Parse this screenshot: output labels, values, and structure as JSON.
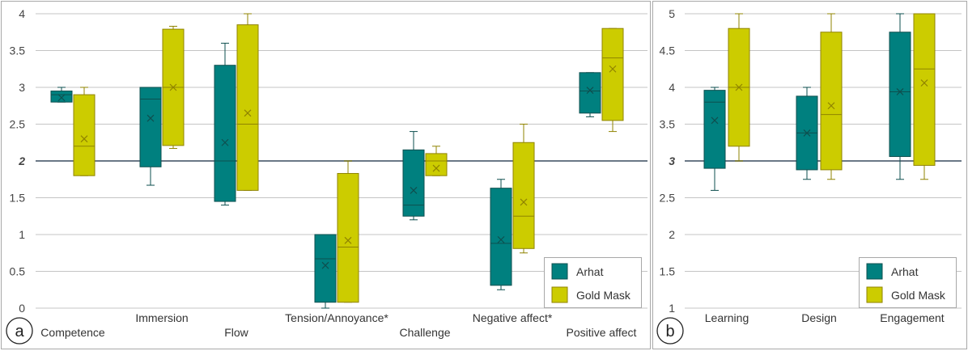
{
  "chart_data": [
    {
      "type": "boxplot",
      "panel_label": "a",
      "ylim": [
        0,
        4
      ],
      "yticks": [
        "0",
        "0.5",
        "1",
        "1.5",
        "2",
        "2.5",
        "3",
        "3.5",
        "4"
      ],
      "reference_line": 2,
      "categories": [
        "Competence",
        "Immersion",
        "Flow",
        "Tension/Annoyance*",
        "Challenge",
        "Negative affect*",
        "Positive affect"
      ],
      "series": [
        {
          "name": "Arhat",
          "color": "#00807f",
          "boxes": [
            {
              "min": 2.8,
              "q1": 2.8,
              "median": 2.9,
              "q3": 2.95,
              "max": 3.0,
              "mean": 2.86
            },
            {
              "min": 1.67,
              "q1": 1.92,
              "median": 2.84,
              "q3": 3.0,
              "max": 3.0,
              "mean": 2.58
            },
            {
              "min": 1.4,
              "q1": 1.45,
              "median": 2.0,
              "q3": 3.3,
              "max": 3.6,
              "mean": 2.25
            },
            {
              "min": 0.0,
              "q1": 0.08,
              "median": 0.67,
              "q3": 1.0,
              "max": 1.0,
              "mean": 0.58
            },
            {
              "min": 1.2,
              "q1": 1.25,
              "median": 1.4,
              "q3": 2.15,
              "max": 2.4,
              "mean": 1.6
            },
            {
              "min": 0.25,
              "q1": 0.31,
              "median": 0.88,
              "q3": 1.63,
              "max": 1.75,
              "mean": 0.93
            },
            {
              "min": 2.6,
              "q1": 2.65,
              "median": 2.95,
              "q3": 3.2,
              "max": 3.2,
              "mean": 2.96
            }
          ]
        },
        {
          "name": "Gold Mask",
          "color": "#cccc00",
          "boxes": [
            {
              "min": 1.8,
              "q1": 1.8,
              "median": 2.2,
              "q3": 2.9,
              "max": 3.0,
              "mean": 2.3
            },
            {
              "min": 2.17,
              "q1": 2.21,
              "median": 3.0,
              "q3": 3.79,
              "max": 3.83,
              "mean": 3.0
            },
            {
              "min": 1.6,
              "q1": 1.6,
              "median": 2.5,
              "q3": 3.85,
              "max": 4.0,
              "mean": 2.65
            },
            {
              "min": 0.08,
              "q1": 0.08,
              "median": 0.83,
              "q3": 1.83,
              "max": 2.0,
              "mean": 0.92
            },
            {
              "min": 1.8,
              "q1": 1.8,
              "median": 2.0,
              "q3": 2.1,
              "max": 2.2,
              "mean": 1.9
            },
            {
              "min": 0.75,
              "q1": 0.81,
              "median": 1.25,
              "q3": 2.25,
              "max": 2.5,
              "mean": 1.44
            },
            {
              "min": 2.4,
              "q1": 2.55,
              "median": 3.4,
              "q3": 3.8,
              "max": 3.8,
              "mean": 3.25
            }
          ]
        }
      ],
      "legend": {
        "position": "bottom-right",
        "entries": [
          "Arhat",
          "Gold Mask"
        ]
      }
    },
    {
      "type": "boxplot",
      "panel_label": "b",
      "ylim": [
        1,
        5
      ],
      "yticks": [
        "1",
        "1.5",
        "2",
        "2.5",
        "3",
        "3.5",
        "4",
        "4.5",
        "5"
      ],
      "reference_line": 3,
      "categories": [
        "Learning",
        "Design",
        "Engagement"
      ],
      "series": [
        {
          "name": "Arhat",
          "color": "#00807f",
          "boxes": [
            {
              "min": 2.6,
              "q1": 2.9,
              "median": 3.8,
              "q3": 3.96,
              "max": 4.0,
              "mean": 3.55
            },
            {
              "min": 2.75,
              "q1": 2.88,
              "median": 3.38,
              "q3": 3.88,
              "max": 4.0,
              "mean": 3.38
            },
            {
              "min": 2.75,
              "q1": 3.06,
              "median": 3.94,
              "q3": 4.75,
              "max": 5.0,
              "mean": 3.94
            }
          ]
        },
        {
          "name": "Gold Mask",
          "color": "#cccc00",
          "boxes": [
            {
              "min": 3.0,
              "q1": 3.2,
              "median": 4.0,
              "q3": 4.8,
              "max": 5.0,
              "mean": 4.0
            },
            {
              "min": 2.75,
              "q1": 2.88,
              "median": 3.63,
              "q3": 4.75,
              "max": 5.0,
              "mean": 3.75
            },
            {
              "min": 2.75,
              "q1": 2.94,
              "median": 4.25,
              "q3": 5.0,
              "max": 5.0,
              "mean": 4.06
            }
          ]
        }
      ],
      "legend": {
        "position": "bottom-right",
        "entries": [
          "Arhat",
          "Gold Mask"
        ]
      }
    }
  ]
}
